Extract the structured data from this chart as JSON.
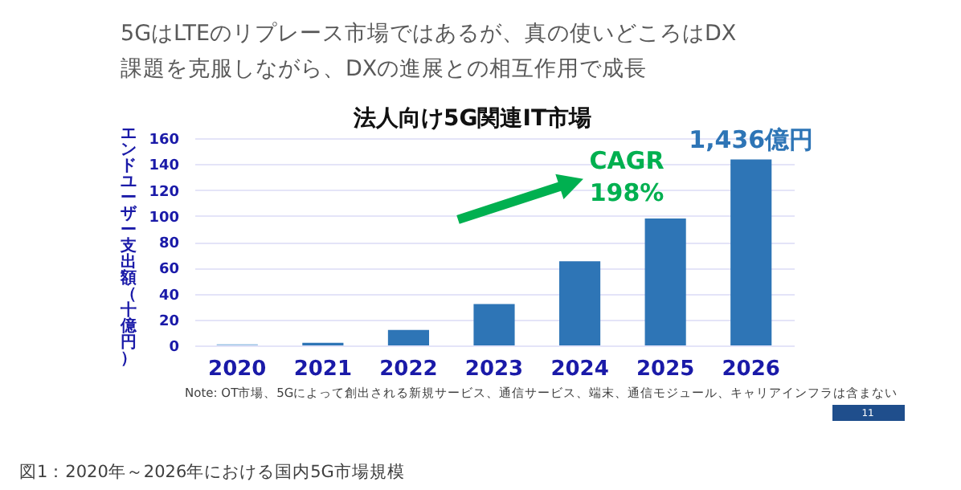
{
  "chart_data": {
    "type": "bar",
    "title": "法人向け5G関連IT市場",
    "ylabel": "エンドユーザー支出額（十億円）",
    "categories": [
      "2020",
      "2021",
      "2022",
      "2023",
      "2024",
      "2025",
      "2026"
    ],
    "values": [
      1,
      2,
      12,
      32,
      65,
      98,
      143.6
    ],
    "colors": [
      "#9dc3e6",
      "#2e75b6",
      "#2e75b6",
      "#2e75b6",
      "#2e75b6",
      "#2e75b6",
      "#2e75b6"
    ],
    "ylim": [
      0,
      160
    ],
    "yticks": [
      0,
      20,
      40,
      60,
      80,
      100,
      120,
      140,
      160
    ],
    "grid": "y",
    "annotations": [
      "5GはLTEのリプレース市場ではあるが、真の使いどころはDX",
      "課題を克服しながら、DXの進展との相互作用で成長",
      "CAGR 198%",
      "Note: OT市場、5Gによって創出される新規サービス、通信サービス、端末、通信モジュール、キャリアインフラは含まない",
      "図1：2020年～2026年における国内5G市場規模",
      "11",
      {
        "text": "1,436億円",
        "x": "2026",
        "y": 143.6
      }
    ]
  }
}
